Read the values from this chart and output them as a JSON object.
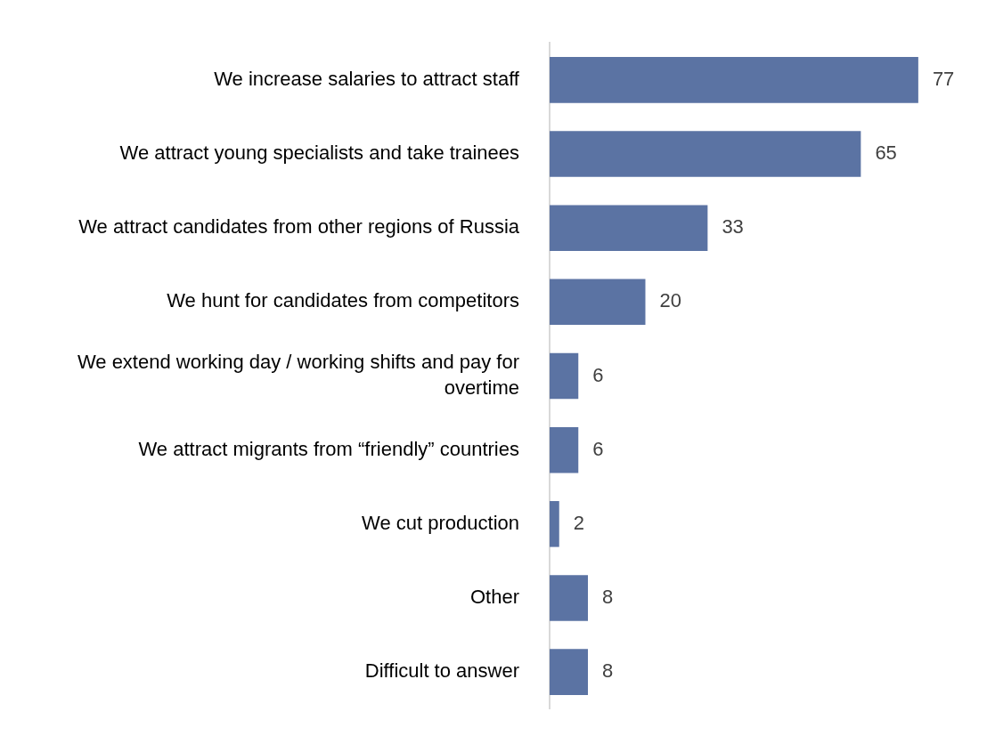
{
  "chart_data": {
    "type": "bar",
    "orientation": "horizontal",
    "tick_labels": "y",
    "data_labels": true,
    "grid": false,
    "categories": [
      "We increase salaries to attract staff",
      "We attract young specialists and take trainees",
      "We attract candidates from other regions of Russia",
      "We hunt for candidates from competitors",
      "We extend working day / working shifts and pay for overtime",
      "We attract migrants from “friendly” countries",
      "We cut production",
      "Other",
      "Difficult to answer"
    ],
    "values": [
      77,
      65,
      33,
      20,
      6,
      6,
      2,
      8,
      8
    ],
    "color": "#5b73a3"
  }
}
